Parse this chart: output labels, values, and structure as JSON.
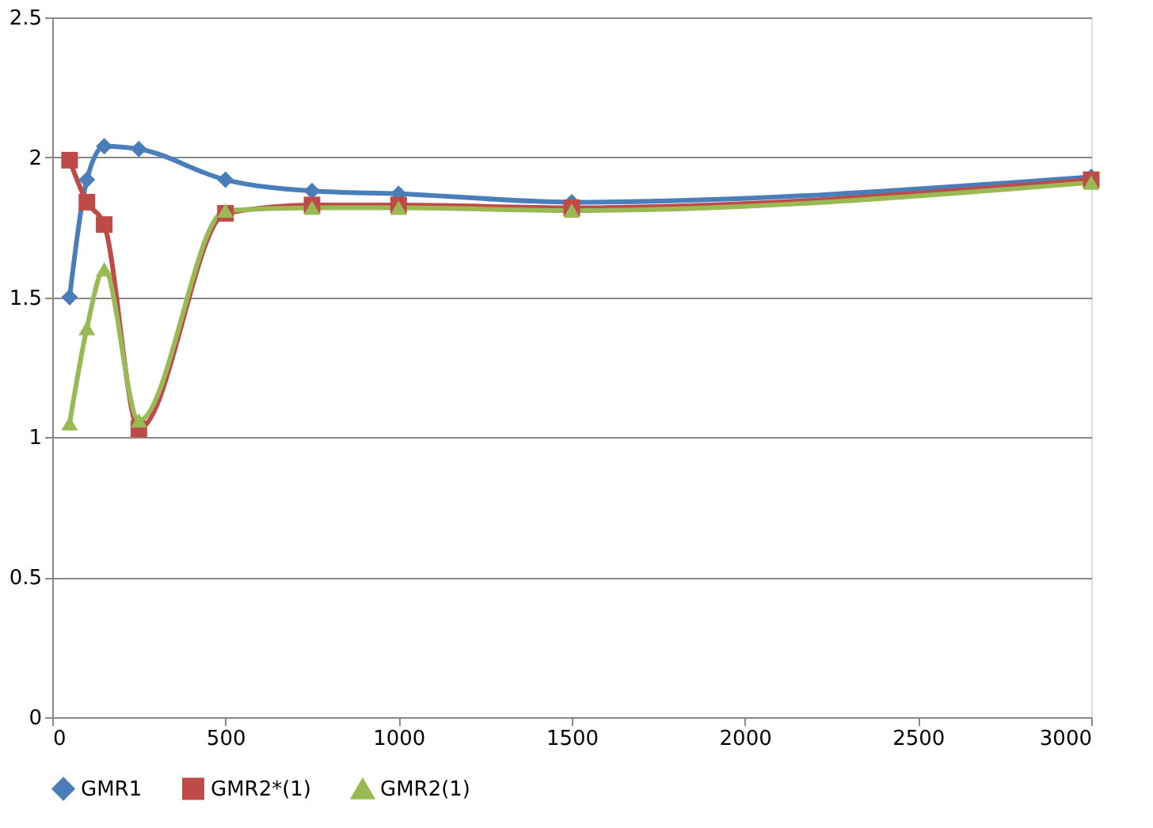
{
  "chart_data": {
    "type": "line",
    "x": [
      50,
      100,
      150,
      250,
      500,
      750,
      1000,
      1500,
      3000
    ],
    "series": [
      {
        "name": "GMR1",
        "color": "#4a7ebb",
        "marker": "diamond",
        "values": [
          1.5,
          1.92,
          2.04,
          2.03,
          1.92,
          1.88,
          1.87,
          1.84,
          1.93
        ]
      },
      {
        "name": "GMR2*(1)",
        "color": "#be4b48",
        "marker": "square",
        "values": [
          1.99,
          1.84,
          1.76,
          1.03,
          1.8,
          1.83,
          1.83,
          1.82,
          1.92
        ]
      },
      {
        "name": "GMR2(1)",
        "color": "#98b954",
        "marker": "triangle",
        "values": [
          1.05,
          1.39,
          1.6,
          1.06,
          1.81,
          1.82,
          1.82,
          1.81,
          1.91
        ]
      }
    ],
    "xlim": [
      0,
      3000
    ],
    "xticks": [
      0,
      500,
      1000,
      1500,
      2000,
      2500,
      3000
    ],
    "ylim": [
      0,
      2.5
    ],
    "yticks": [
      0,
      0.5,
      1,
      1.5,
      2,
      2.5
    ],
    "grid": "y",
    "legend": "bottom",
    "line_style": "solid"
  }
}
